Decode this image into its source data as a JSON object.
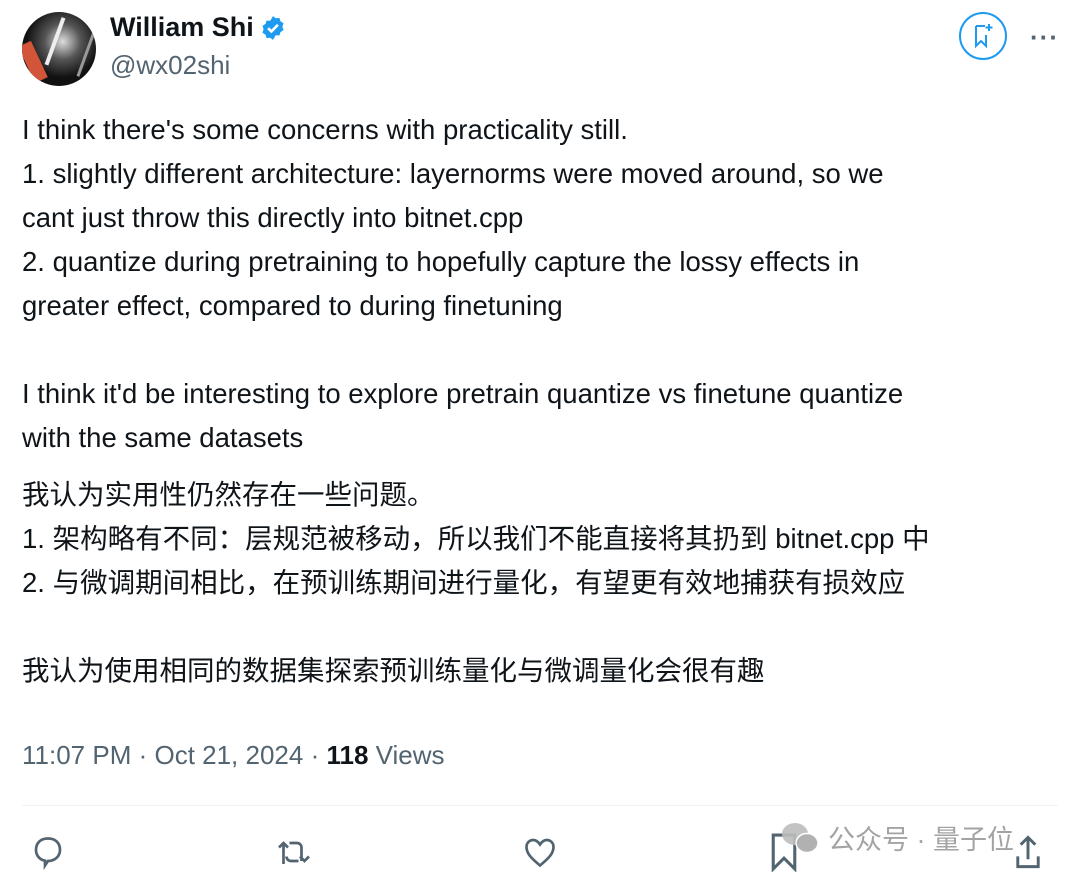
{
  "author": {
    "name": "William Shi",
    "handle": "@wx02shi",
    "verified": true
  },
  "tweet": {
    "english": [
      [
        "I think there's some concerns with practicality still.",
        "1. slightly different architecture: layernorms were moved around, so we",
        "cant just throw this directly into bitnet.cpp",
        "2. quantize during pretraining to hopefully capture the lossy effects in",
        "greater effect, compared to during finetuning"
      ],
      [
        "I think it'd be interesting to explore pretrain quantize vs finetune quantize",
        "with the same datasets"
      ]
    ],
    "chinese": [
      [
        "我认为实用性仍然存在一些问题。",
        "1. 架构略有不同：层规范被移动，所以我们不能直接将其扔到 bitnet.cpp 中",
        "2. 与微调期间相比，在预训练期间进行量化，有望更有效地捕获有损效应"
      ],
      [
        "我认为使用相同的数据集探索预训练量化与微调量化会很有趣"
      ]
    ]
  },
  "meta": {
    "time": "11:07 PM",
    "sep": " · ",
    "date": "Oct 21, 2024",
    "views_count": "118",
    "views_label": " Views"
  },
  "watermark": "公众号 · 量子位",
  "colors": {
    "accent": "#1d9bf0",
    "secondary_text": "#536471",
    "icon": "#536471"
  }
}
